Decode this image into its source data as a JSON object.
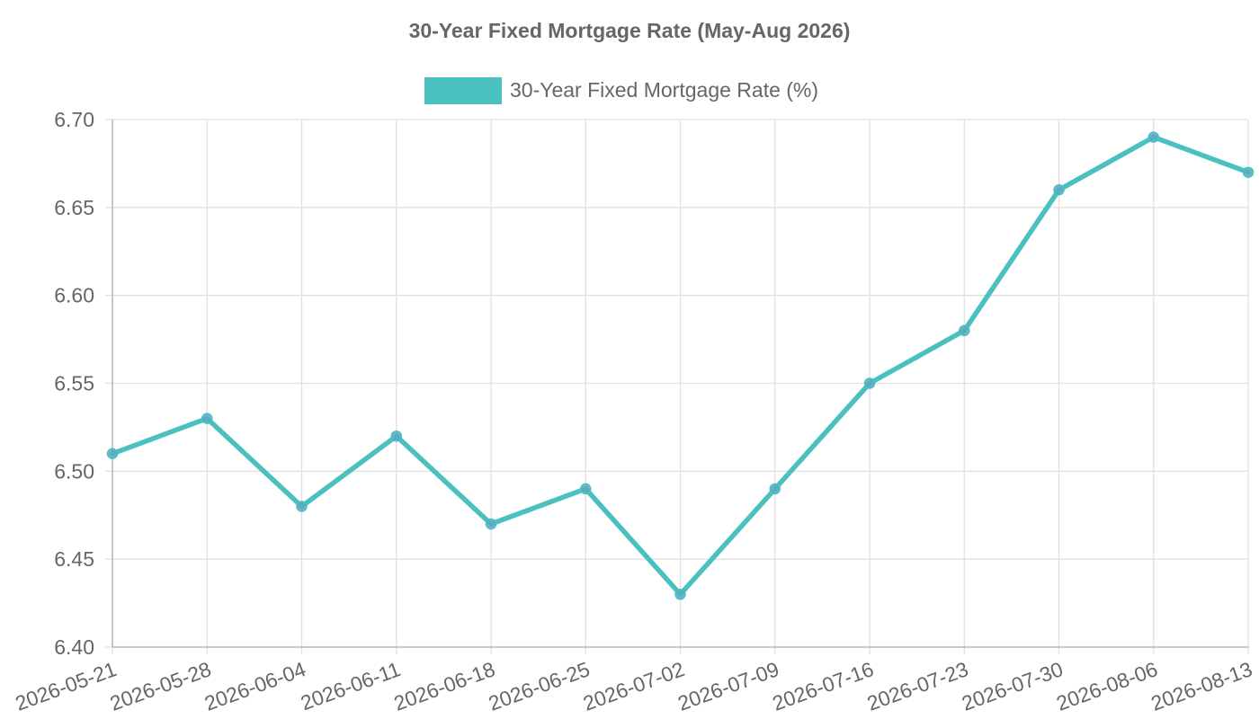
{
  "chart_data": {
    "type": "line",
    "title": "30-Year Fixed Mortgage Rate (May-Aug 2026)",
    "xlabel": "",
    "ylabel": "",
    "x": [
      "2026-05-21",
      "2026-05-28",
      "2026-06-04",
      "2026-06-11",
      "2026-06-18",
      "2026-06-25",
      "2026-07-02",
      "2026-07-09",
      "2026-07-16",
      "2026-07-23",
      "2026-07-30",
      "2026-08-06",
      "2026-08-13"
    ],
    "series": [
      {
        "name": "30-Year Fixed Mortgage Rate (%)",
        "values": [
          6.51,
          6.53,
          6.48,
          6.52,
          6.47,
          6.49,
          6.43,
          6.49,
          6.55,
          6.58,
          6.66,
          6.69,
          6.67
        ],
        "color": "#4bc0c0",
        "point_color": "#5aa9c2"
      }
    ],
    "ylim": [
      6.4,
      6.7
    ],
    "yticks": [
      "6.70",
      "6.65",
      "6.60",
      "6.55",
      "6.50",
      "6.45",
      "6.40"
    ],
    "grid": true,
    "legend_position": "top-center"
  }
}
